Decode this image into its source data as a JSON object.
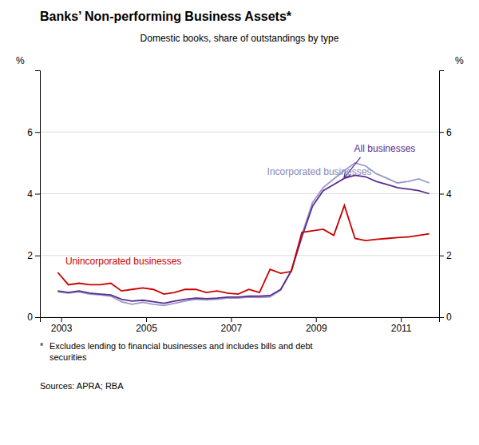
{
  "chart_data": {
    "type": "line",
    "title": "Banks’ Non-performing Business Assets*",
    "subtitle": "Domestic books, share of outstandings by type",
    "footnote_marker": "*",
    "footnote": "Excludes lending to financial businesses and includes bills and debt\nsecurities",
    "source": "Sources: APRA; RBA",
    "ylabel": "%",
    "y2label": "%",
    "xlim": [
      2002.5,
      2011.9
    ],
    "xticks": [
      2003,
      2005,
      2007,
      2009,
      2011
    ],
    "ylim": [
      0,
      8
    ],
    "yticks": [
      0,
      2,
      4,
      6
    ],
    "y2lim": [
      0,
      8
    ],
    "y2ticks": [
      0,
      2,
      4,
      6
    ],
    "grid": true,
    "x": [
      2002.92,
      2003.17,
      2003.42,
      2003.67,
      2003.92,
      2004.17,
      2004.42,
      2004.67,
      2004.92,
      2005.17,
      2005.42,
      2005.67,
      2005.92,
      2006.17,
      2006.42,
      2006.67,
      2006.92,
      2007.17,
      2007.42,
      2007.67,
      2007.92,
      2008.17,
      2008.42,
      2008.67,
      2008.92,
      2009.17,
      2009.42,
      2009.67,
      2009.92,
      2010.17,
      2010.42,
      2010.67,
      2010.92,
      2011.17,
      2011.42,
      2011.67
    ],
    "series": [
      {
        "color": "#9999cc",
        "values": [
          0.82,
          0.78,
          0.82,
          0.75,
          0.72,
          0.68,
          0.5,
          0.42,
          0.48,
          0.42,
          0.38,
          0.45,
          0.52,
          0.58,
          0.56,
          0.58,
          0.62,
          0.62,
          0.65,
          0.64,
          0.66,
          0.88,
          1.52,
          2.68,
          3.72,
          4.2,
          4.48,
          4.75,
          5.0,
          4.9,
          4.65,
          4.5,
          4.35,
          4.4,
          4.48,
          4.35
        ]
      },
      {
        "color": "#5b2d8e",
        "values": [
          0.85,
          0.8,
          0.85,
          0.78,
          0.75,
          0.72,
          0.58,
          0.52,
          0.55,
          0.5,
          0.45,
          0.52,
          0.58,
          0.62,
          0.6,
          0.62,
          0.65,
          0.65,
          0.68,
          0.68,
          0.7,
          0.9,
          1.5,
          2.6,
          3.6,
          4.1,
          4.3,
          4.5,
          4.6,
          4.55,
          4.4,
          4.3,
          4.2,
          4.15,
          4.1,
          4.0
        ]
      },
      {
        "color": "#cc0000",
        "values": [
          1.45,
          1.05,
          1.1,
          1.05,
          1.05,
          1.1,
          0.85,
          0.9,
          0.95,
          0.9,
          0.75,
          0.8,
          0.9,
          0.9,
          0.8,
          0.85,
          0.78,
          0.75,
          0.9,
          0.8,
          1.55,
          1.42,
          1.48,
          2.75,
          2.8,
          2.85,
          2.65,
          3.62,
          2.55,
          2.48,
          2.52,
          2.55,
          2.58,
          2.6,
          2.65,
          2.7
        ]
      }
    ],
    "annotations": [
      {
        "text": "All businesses",
        "x": 2009.9,
        "y": 5.35,
        "color": "#5b2d8e",
        "arrow": {
          "from_x": 2010.05,
          "from_y": 5.18,
          "x": 2009.67,
          "y": 4.52
        }
      },
      {
        "text": "Incorporated businesses",
        "x": 2007.85,
        "y": 4.6,
        "color": "#8888bb"
      },
      {
        "text": "Unincorporated businesses",
        "x": 2003.1,
        "y": 1.72,
        "color": "#cc0000"
      }
    ]
  }
}
